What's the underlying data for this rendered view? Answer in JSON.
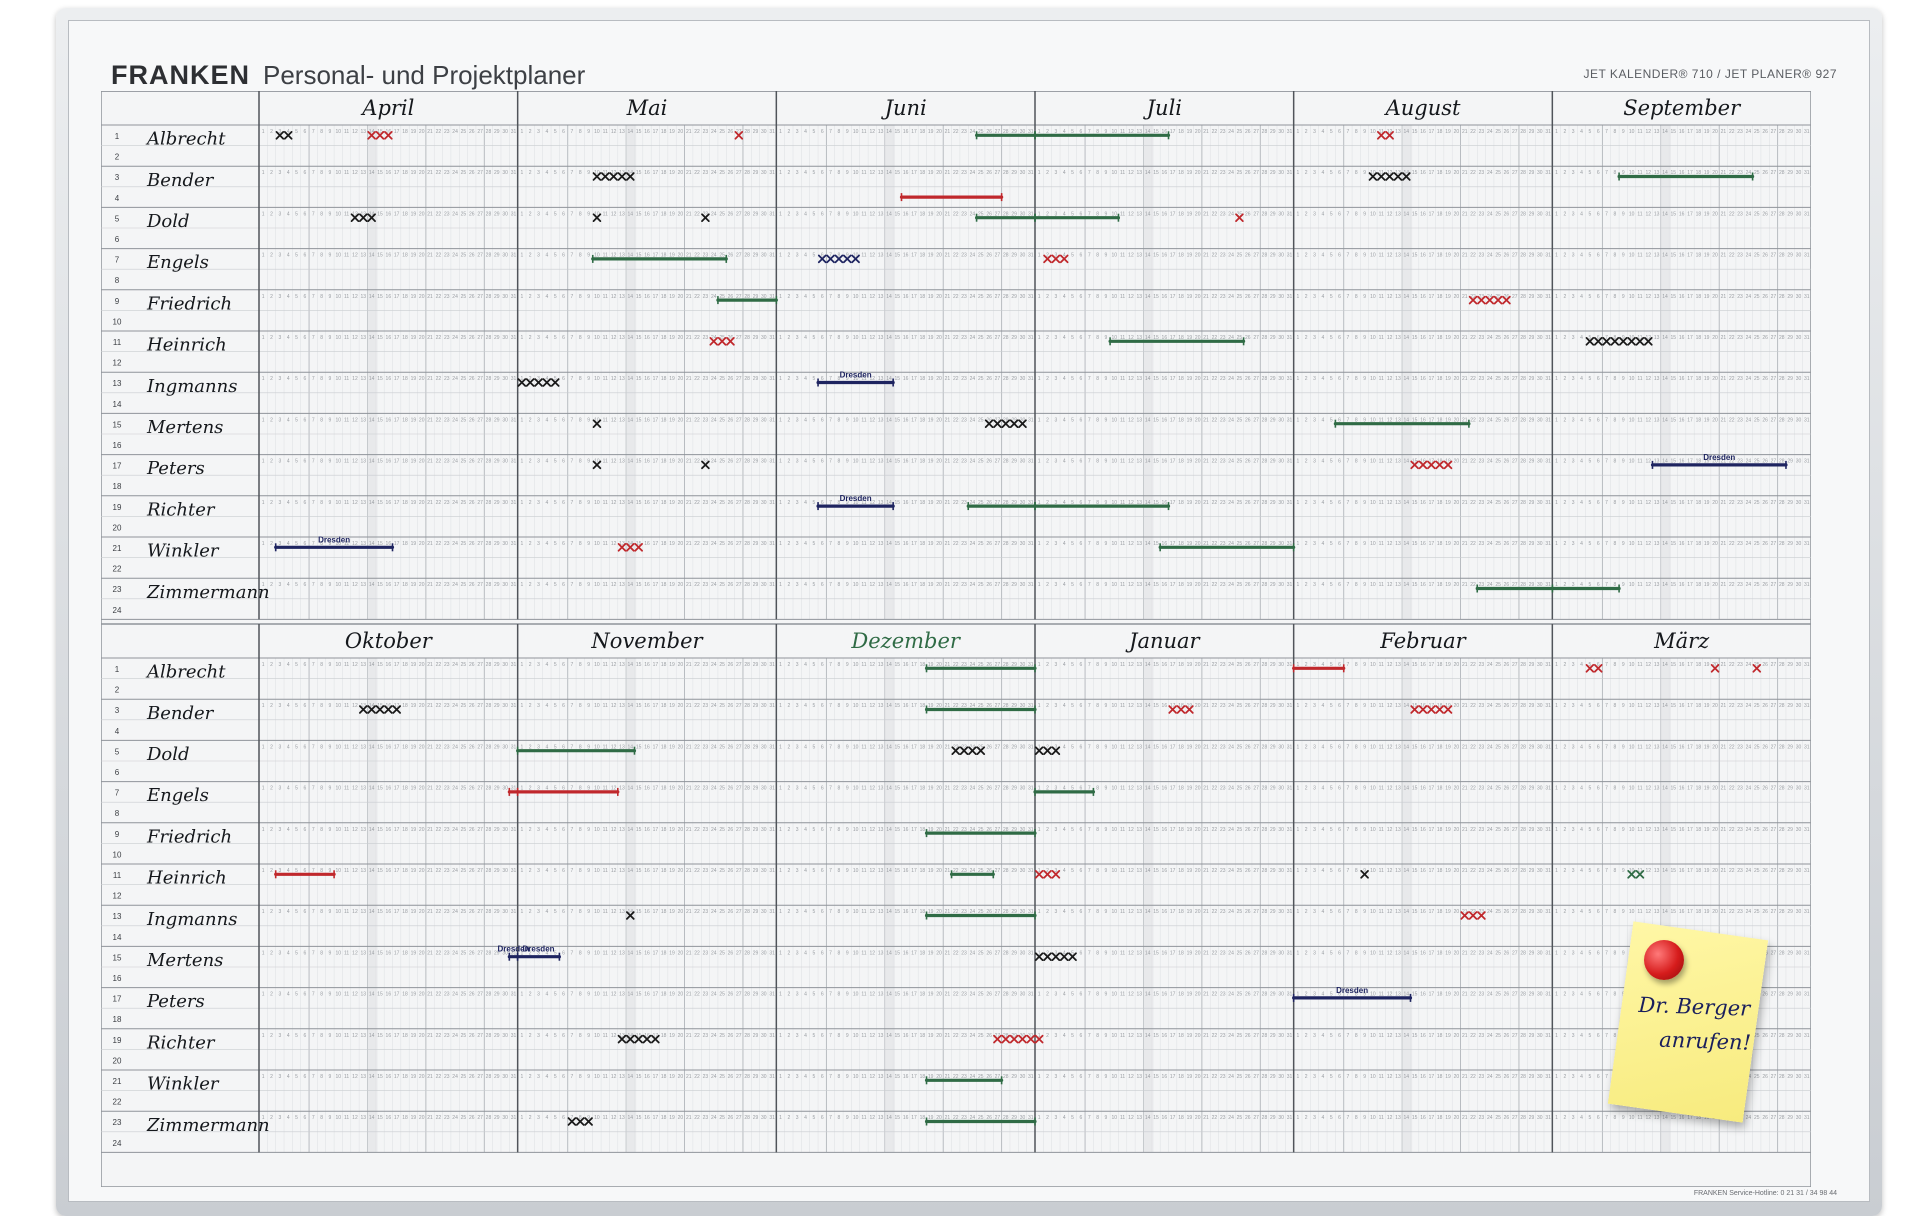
{
  "header": {
    "brand": "FRANKEN",
    "title": "Personal- und Projektplaner",
    "product_line": "JET KALENDER® 710 / JET PLANER® 927"
  },
  "footer": {
    "hotline": "FRANKEN Service-Hotline: 0 21 31 / 34 98 44"
  },
  "rows": [
    "1",
    "2",
    "3",
    "4",
    "5",
    "6",
    "7",
    "8",
    "9",
    "10",
    "11",
    "12",
    "13",
    "14",
    "15",
    "16",
    "17",
    "18",
    "19",
    "20",
    "21",
    "22",
    "23",
    "24"
  ],
  "names": [
    "Albrecht",
    "Bender",
    "Dold",
    "Engels",
    "Friedrich",
    "Heinrich",
    "Ingmanns",
    "Mertens",
    "Peters",
    "Richter",
    "Winkler",
    "Zimmermann"
  ],
  "names_lower": [
    "Albrecht",
    "Bender",
    "Dold",
    "Engels",
    "Friedrich",
    "Heinrich",
    "Ingmanns",
    "Mertens",
    "Peters",
    "Richter",
    "Winkler",
    "Zimmermann"
  ],
  "months_top": [
    "April",
    "Mai",
    "Juni",
    "Juli",
    "August",
    "September"
  ],
  "months_bottom": [
    "Oktober",
    "November",
    "Dezember",
    "Januar",
    "Februar",
    "März"
  ],
  "marker_label": "Dresden",
  "sticky_note": {
    "line1": "Dr. Berger",
    "line2": "anrufen!"
  },
  "colors": {
    "green": "#2f6b45",
    "red": "#c0282c",
    "navy": "#1e2460",
    "black": "#1a1a1a",
    "grid": "#8f949a",
    "grid_light": "#c9ccd0"
  },
  "entries": [
    {
      "p": 0,
      "m": 0,
      "row": 1,
      "type": "x",
      "d": 3,
      "n": 2,
      "c": "black"
    },
    {
      "p": 0,
      "m": 0,
      "row": 1,
      "type": "x",
      "d": 14,
      "n": 3,
      "c": "red"
    },
    {
      "p": 0,
      "m": 1,
      "row": 1,
      "type": "x",
      "d": 27,
      "n": 1,
      "c": "red"
    },
    {
      "p": 0,
      "m": 2,
      "row": 1,
      "type": "bar",
      "d": 25,
      "e": 31,
      "c": "green"
    },
    {
      "p": 0,
      "m": 3,
      "row": 1,
      "type": "bar",
      "d": 1,
      "e": 16,
      "c": "green"
    },
    {
      "p": 0,
      "m": 4,
      "row": 1,
      "type": "x",
      "d": 11,
      "n": 2,
      "c": "red"
    },
    {
      "p": 0,
      "m": 1,
      "row": 3,
      "type": "x",
      "d": 10,
      "n": 5,
      "c": "black"
    },
    {
      "p": 0,
      "m": 4,
      "row": 3,
      "type": "x",
      "d": 10,
      "n": 5,
      "c": "black"
    },
    {
      "p": 0,
      "m": 5,
      "row": 3,
      "type": "bar",
      "d": 9,
      "e": 24,
      "c": "green"
    },
    {
      "p": 0,
      "m": 2,
      "row": 4,
      "type": "bar",
      "d": 16,
      "e": 27,
      "c": "red"
    },
    {
      "p": 0,
      "m": 0,
      "row": 5,
      "type": "x",
      "d": 12,
      "n": 3,
      "c": "black"
    },
    {
      "p": 0,
      "m": 1,
      "row": 5,
      "type": "x",
      "d": 10,
      "n": 1,
      "c": "black"
    },
    {
      "p": 0,
      "m": 1,
      "row": 5,
      "type": "x",
      "d": 23,
      "n": 1,
      "c": "black"
    },
    {
      "p": 0,
      "m": 2,
      "row": 5,
      "type": "bar",
      "d": 25,
      "e": 31,
      "c": "green"
    },
    {
      "p": 0,
      "m": 3,
      "row": 5,
      "type": "bar",
      "d": 1,
      "e": 10,
      "c": "green"
    },
    {
      "p": 0,
      "m": 3,
      "row": 5,
      "type": "x",
      "d": 25,
      "n": 1,
      "c": "red"
    },
    {
      "p": 0,
      "m": 1,
      "row": 7,
      "type": "bar",
      "d": 10,
      "e": 25,
      "c": "green"
    },
    {
      "p": 0,
      "m": 2,
      "row": 7,
      "type": "x",
      "d": 6,
      "n": 5,
      "c": "navy"
    },
    {
      "p": 0,
      "m": 3,
      "row": 7,
      "type": "x",
      "d": 2,
      "n": 3,
      "c": "red"
    },
    {
      "p": 0,
      "m": 1,
      "row": 9,
      "type": "bar",
      "d": 25,
      "e": 37,
      "c": "green"
    },
    {
      "p": 0,
      "m": 4,
      "row": 9,
      "type": "x",
      "d": 22,
      "n": 5,
      "c": "red"
    },
    {
      "p": 0,
      "m": 1,
      "row": 11,
      "type": "x",
      "d": 24,
      "n": 3,
      "c": "red"
    },
    {
      "p": 0,
      "m": 3,
      "row": 11,
      "type": "bar",
      "d": 10,
      "e": 25,
      "c": "green"
    },
    {
      "p": 0,
      "m": 5,
      "row": 11,
      "type": "x",
      "d": 5,
      "n": 8,
      "c": "black"
    },
    {
      "p": 0,
      "m": 1,
      "row": 13,
      "type": "x",
      "d": 1,
      "n": 5,
      "c": "black"
    },
    {
      "p": 0,
      "m": 2,
      "row": 13,
      "type": "trip",
      "d": 6,
      "e": 14,
      "c": "navy"
    },
    {
      "p": 0,
      "m": 1,
      "row": 15,
      "type": "x",
      "d": 10,
      "n": 1,
      "c": "black"
    },
    {
      "p": 0,
      "m": 2,
      "row": 15,
      "type": "x",
      "d": 26,
      "n": 5,
      "c": "black"
    },
    {
      "p": 0,
      "m": 4,
      "row": 15,
      "type": "bar",
      "d": 6,
      "e": 21,
      "c": "green"
    },
    {
      "p": 0,
      "m": 1,
      "row": 17,
      "type": "x",
      "d": 10,
      "n": 1,
      "c": "black"
    },
    {
      "p": 0,
      "m": 1,
      "row": 17,
      "type": "x",
      "d": 23,
      "n": 1,
      "c": "black"
    },
    {
      "p": 0,
      "m": 4,
      "row": 17,
      "type": "x",
      "d": 15,
      "n": 5,
      "c": "red"
    },
    {
      "p": 0,
      "m": 5,
      "row": 17,
      "type": "trip",
      "d": 13,
      "e": 28,
      "c": "navy"
    },
    {
      "p": 0,
      "m": 2,
      "row": 19,
      "type": "trip",
      "d": 6,
      "e": 14,
      "c": "navy"
    },
    {
      "p": 0,
      "m": 2,
      "row": 19,
      "type": "bar",
      "d": 24,
      "e": 31,
      "c": "green"
    },
    {
      "p": 0,
      "m": 3,
      "row": 19,
      "type": "bar",
      "d": 1,
      "e": 16,
      "c": "green"
    },
    {
      "p": 0,
      "m": 0,
      "row": 21,
      "type": "trip",
      "d": 3,
      "e": 16,
      "c": "navy"
    },
    {
      "p": 0,
      "m": 1,
      "row": 21,
      "type": "x",
      "d": 13,
      "n": 3,
      "c": "red"
    },
    {
      "p": 0,
      "m": 3,
      "row": 21,
      "type": "bar",
      "d": 16,
      "e": 31,
      "c": "green"
    },
    {
      "p": 0,
      "m": 4,
      "row": 23,
      "type": "bar",
      "d": 23,
      "e": 31,
      "c": "green"
    },
    {
      "p": 0,
      "m": 5,
      "row": 23,
      "type": "bar",
      "d": 1,
      "e": 8,
      "c": "green"
    },
    {
      "p": 1,
      "m": 2,
      "row": 1,
      "type": "bar",
      "d": 19,
      "e": 37,
      "c": "green"
    },
    {
      "p": 1,
      "m": 4,
      "row": 1,
      "type": "bar",
      "d": 1,
      "e": 6,
      "c": "red"
    },
    {
      "p": 1,
      "m": 5,
      "row": 1,
      "type": "x",
      "d": 5,
      "n": 2,
      "c": "red"
    },
    {
      "p": 1,
      "m": 5,
      "row": 1,
      "type": "x",
      "d": 20,
      "n": 1,
      "c": "red"
    },
    {
      "p": 1,
      "m": 5,
      "row": 1,
      "type": "x",
      "d": 25,
      "n": 1,
      "c": "red"
    },
    {
      "p": 1,
      "m": 0,
      "row": 3,
      "type": "x",
      "d": 13,
      "n": 5,
      "c": "black"
    },
    {
      "p": 1,
      "m": 2,
      "row": 3,
      "type": "bar",
      "d": 19,
      "e": 32,
      "c": "green"
    },
    {
      "p": 1,
      "m": 3,
      "row": 3,
      "type": "x",
      "d": 17,
      "n": 3,
      "c": "red"
    },
    {
      "p": 1,
      "m": 4,
      "row": 3,
      "type": "x",
      "d": 15,
      "n": 5,
      "c": "red"
    },
    {
      "p": 1,
      "m": 1,
      "row": 5,
      "type": "bar",
      "d": 1,
      "e": 14,
      "c": "green"
    },
    {
      "p": 1,
      "m": 2,
      "row": 5,
      "type": "x",
      "d": 22,
      "n": 4,
      "c": "black"
    },
    {
      "p": 1,
      "m": 3,
      "row": 5,
      "type": "x",
      "d": 1,
      "n": 3,
      "c": "black"
    },
    {
      "p": 1,
      "m": 0,
      "row": 7,
      "type": "bar",
      "d": 31,
      "e": 31,
      "c": "red"
    },
    {
      "p": 1,
      "m": 1,
      "row": 7,
      "type": "bar",
      "d": 1,
      "e": 12,
      "c": "red"
    },
    {
      "p": 1,
      "m": 3,
      "row": 7,
      "type": "bar",
      "d": 1,
      "e": 7,
      "c": "green"
    },
    {
      "p": 1,
      "m": 2,
      "row": 9,
      "type": "bar",
      "d": 19,
      "e": 32,
      "c": "green"
    },
    {
      "p": 1,
      "m": 0,
      "row": 11,
      "type": "bar",
      "d": 3,
      "e": 9,
      "c": "red"
    },
    {
      "p": 1,
      "m": 2,
      "row": 11,
      "type": "bar",
      "d": 22,
      "e": 26,
      "c": "green"
    },
    {
      "p": 1,
      "m": 3,
      "row": 11,
      "type": "x",
      "d": 1,
      "n": 3,
      "c": "red"
    },
    {
      "p": 1,
      "m": 4,
      "row": 11,
      "type": "x",
      "d": 9,
      "n": 1,
      "c": "black"
    },
    {
      "p": 1,
      "m": 5,
      "row": 11,
      "type": "x",
      "d": 10,
      "n": 2,
      "c": "green"
    },
    {
      "p": 1,
      "m": 1,
      "row": 13,
      "type": "x",
      "d": 14,
      "n": 1,
      "c": "black"
    },
    {
      "p": 1,
      "m": 2,
      "row": 13,
      "type": "bar",
      "d": 19,
      "e": 37,
      "c": "green"
    },
    {
      "p": 1,
      "m": 4,
      "row": 13,
      "type": "x",
      "d": 21,
      "n": 3,
      "c": "red"
    },
    {
      "p": 1,
      "m": 0,
      "row": 15,
      "type": "trip",
      "d": 31,
      "e": 31,
      "c": "navy"
    },
    {
      "p": 1,
      "m": 1,
      "row": 15,
      "type": "trip",
      "d": 1,
      "e": 5,
      "c": "navy"
    },
    {
      "p": 1,
      "m": 3,
      "row": 15,
      "type": "x",
      "d": 1,
      "n": 5,
      "c": "black"
    },
    {
      "p": 1,
      "m": 4,
      "row": 17,
      "type": "trip",
      "d": 1,
      "e": 14,
      "c": "navy"
    },
    {
      "p": 1,
      "m": 1,
      "row": 19,
      "type": "x",
      "d": 13,
      "n": 5,
      "c": "black"
    },
    {
      "p": 1,
      "m": 2,
      "row": 19,
      "type": "x",
      "d": 27,
      "n": 6,
      "c": "red"
    },
    {
      "p": 1,
      "m": 2,
      "row": 21,
      "type": "bar",
      "d": 19,
      "e": 27,
      "c": "green"
    },
    {
      "p": 1,
      "m": 1,
      "row": 23,
      "type": "x",
      "d": 7,
      "n": 3,
      "c": "black"
    },
    {
      "p": 1,
      "m": 2,
      "row": 23,
      "type": "bar",
      "d": 19,
      "e": 32,
      "c": "green"
    }
  ]
}
